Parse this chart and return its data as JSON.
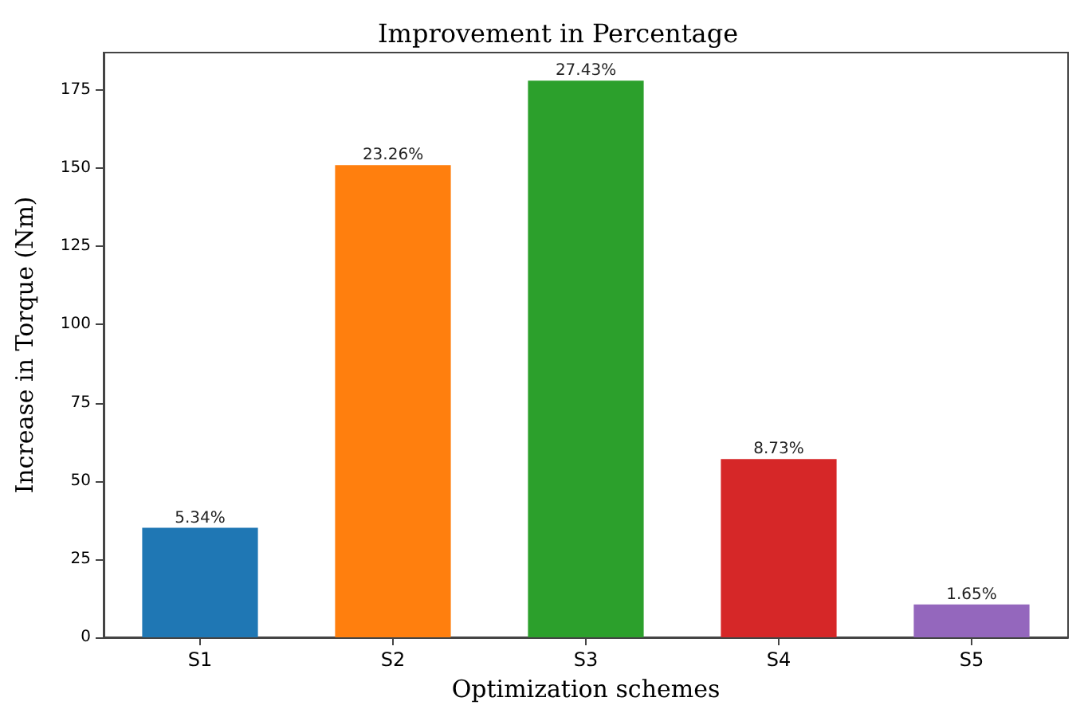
{
  "chart_data": {
    "type": "bar",
    "title": "Improvement in Percentage",
    "xlabel": "Optimization schemes",
    "ylabel": "Increase in Torque (Nm)",
    "categories": [
      "S1",
      "S2",
      "S3",
      "S4",
      "S5"
    ],
    "values": [
      35,
      151,
      178,
      57,
      10.5
    ],
    "colors": [
      "#1f77b4",
      "#ff7f0e",
      "#2ca02c",
      "#d62728",
      "#9467bd"
    ],
    "annotations": [
      {
        "text": "5.34%",
        "x": "S1",
        "y": 35
      },
      {
        "text": "23.26%",
        "x": "S2",
        "y": 151
      },
      {
        "text": "27.43%",
        "x": "S3",
        "y": 178
      },
      {
        "text": "8.73%",
        "x": "S4",
        "y": 57
      },
      {
        "text": "1.65%",
        "x": "S5",
        "y": 10.5
      }
    ],
    "ylim": [
      0,
      187
    ],
    "yticks": [
      0,
      25,
      50,
      75,
      100,
      125,
      150,
      175
    ],
    "grid": false
  }
}
